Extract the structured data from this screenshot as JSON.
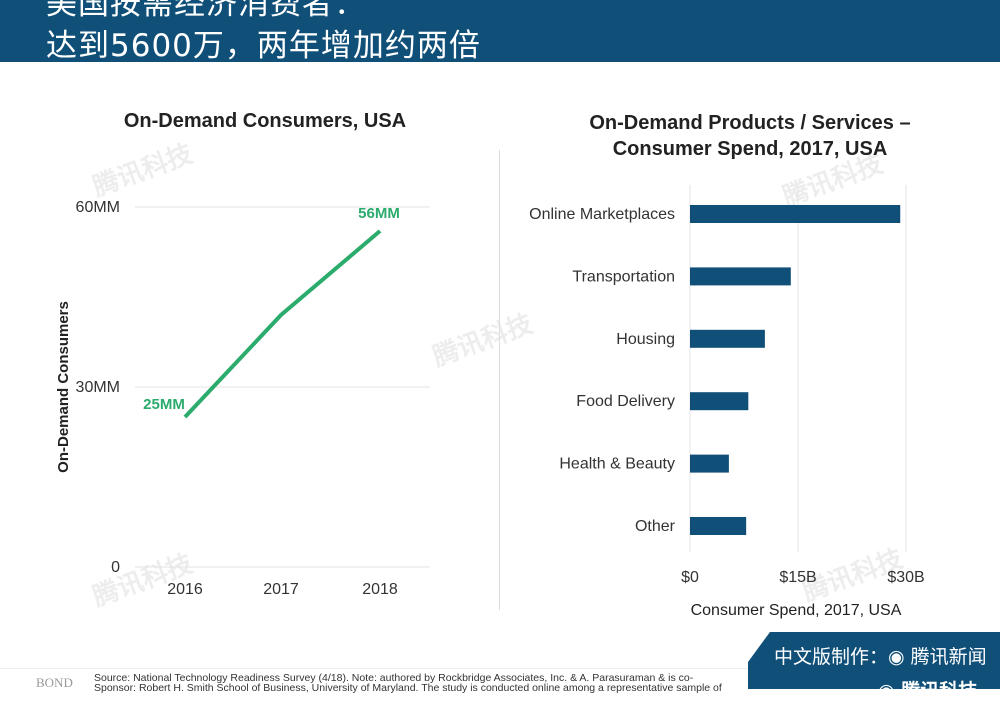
{
  "header": {
    "line1": "美国按需经济消费者：",
    "line2": "达到5600万，两年增加约两倍"
  },
  "watermark": "腾讯科技",
  "chart_data": [
    {
      "type": "line",
      "title": "On-Demand Consumers, USA",
      "xlabel": "",
      "ylabel": "On-Demand Consumers",
      "categories": [
        "2016",
        "2017",
        "2018"
      ],
      "values": [
        25,
        42,
        56
      ],
      "data_labels": [
        "25MM",
        "",
        "56MM"
      ],
      "yticks": [
        "0",
        "30MM",
        "60MM"
      ],
      "ylim": [
        0,
        60
      ],
      "grid": true,
      "color": "#2bab6c"
    },
    {
      "type": "bar",
      "orientation": "horizontal",
      "title": "On-Demand Products / Services – Consumer Spend, 2017, USA",
      "xlabel": "Consumer Spend, 2017, USA",
      "ylabel": "",
      "categories": [
        "Online Marketplaces",
        "Transportation",
        "Housing",
        "Food Delivery",
        "Health & Beauty",
        "Other"
      ],
      "values": [
        29.2,
        14.0,
        10.4,
        8.1,
        5.4,
        7.8
      ],
      "xticks": [
        "$0",
        "$15B",
        "$30B"
      ],
      "xlim": [
        0,
        30
      ],
      "unit": "$B",
      "grid": true,
      "color": "#0f4f78"
    }
  ],
  "footer": {
    "logo": "BOND",
    "source1": "Source: National Technology Readiness Survey (4/18). Note: authored by Rockbridge Associates, Inc. & A. Parasuraman & is co-",
    "source2": "Sponsor: Robert H. Smith School of Business, University of Maryland. The study is conducted online among a representative sample of"
  },
  "badge": {
    "line1": "中文版制作：◉ 腾讯新闻",
    "line2": "◉ 腾讯科技"
  }
}
